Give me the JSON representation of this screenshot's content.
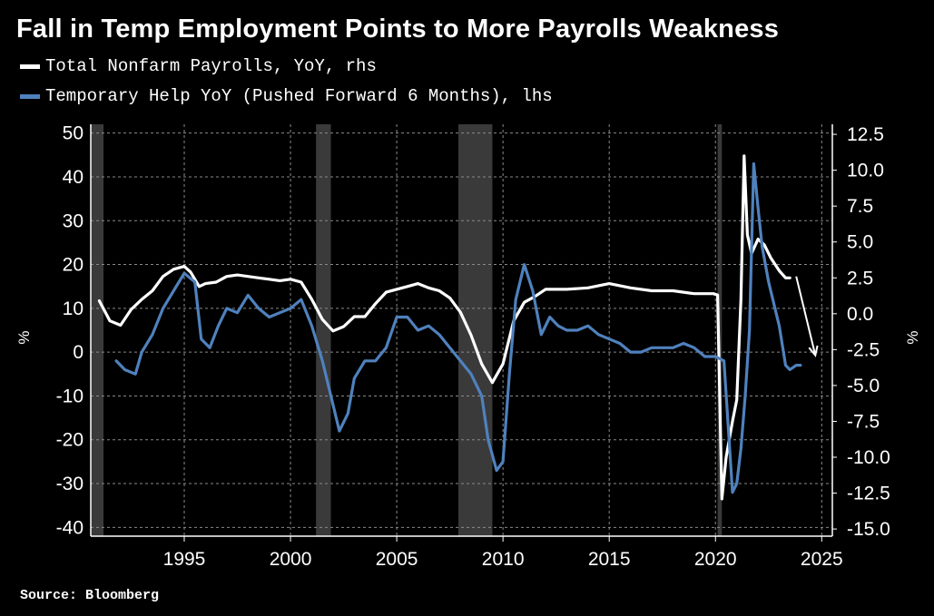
{
  "header": {
    "title": "Fall in Temp Employment Points to More Payrolls Weakness"
  },
  "legend": {
    "series1": "Total Nonfarm Payrolls, YoY, rhs",
    "series2": "Temporary Help YoY (Pushed Forward 6 Months), lhs"
  },
  "footer": {
    "source": "Source: Bloomberg"
  },
  "chart_data": {
    "type": "line",
    "title": "Fall in Temp Employment Points to More Payrolls Weakness",
    "x_ticks": [
      "1995",
      "2000",
      "2005",
      "2010",
      "2015",
      "2020",
      "2025"
    ],
    "x_tick_values": [
      1995,
      2000,
      2005,
      2010,
      2015,
      2020,
      2025
    ],
    "xlim": [
      1990.6,
      2025.5
    ],
    "left_axis": {
      "label": "%",
      "ylim": [
        -42,
        52
      ],
      "ticks": [
        50,
        40,
        30,
        20,
        10,
        0,
        -10,
        -20,
        -30,
        -40
      ]
    },
    "right_axis": {
      "label": "%",
      "ylim": [
        -15.5,
        13.2
      ],
      "ticks": [
        "12.5",
        "10.0",
        "7.5",
        "5.0",
        "2.5",
        "0.0",
        "-2.5",
        "-5.0",
        "-7.5",
        "-10.0",
        "-12.5",
        "-15.0"
      ]
    },
    "grid": true,
    "recessions": [
      [
        1990.6,
        1991.2
      ],
      [
        2001.2,
        2001.9
      ],
      [
        2007.9,
        2009.5
      ],
      [
        2020.1,
        2020.3
      ]
    ],
    "series": [
      {
        "name": "Total Nonfarm Payrolls, YoY, rhs",
        "axis": "right",
        "color": "#ffffff",
        "x": [
          1991.0,
          1991.5,
          1992.0,
          1992.5,
          1993.0,
          1993.5,
          1994.0,
          1994.5,
          1995.0,
          1995.3,
          1995.7,
          1996.0,
          1996.5,
          1997.0,
          1997.5,
          1998.0,
          1998.5,
          1999.0,
          1999.5,
          2000.0,
          2000.5,
          2001.0,
          2001.5,
          2002.0,
          2002.5,
          2003.0,
          2003.5,
          2004.0,
          2004.5,
          2005.0,
          2005.5,
          2006.0,
          2006.5,
          2007.0,
          2007.5,
          2008.0,
          2008.5,
          2009.0,
          2009.5,
          2010.0,
          2010.5,
          2011.0,
          2011.5,
          2012.0,
          2013.0,
          2014.0,
          2015.0,
          2016.0,
          2017.0,
          2018.0,
          2019.0,
          2019.9,
          2020.1,
          2020.3,
          2020.5,
          2020.8,
          2021.0,
          2021.2,
          2021.35,
          2021.5,
          2021.7,
          2022.0,
          2022.3,
          2022.6,
          2023.0,
          2023.3,
          2023.5
        ],
        "values": [
          0.9,
          -0.5,
          -0.8,
          0.3,
          1.0,
          1.6,
          2.6,
          3.1,
          3.3,
          2.9,
          1.9,
          2.1,
          2.2,
          2.6,
          2.7,
          2.6,
          2.5,
          2.4,
          2.3,
          2.4,
          2.2,
          1.0,
          -0.4,
          -1.2,
          -0.9,
          -0.2,
          -0.2,
          0.7,
          1.5,
          1.7,
          1.9,
          2.1,
          1.8,
          1.6,
          1.1,
          0.1,
          -1.5,
          -3.5,
          -4.8,
          -3.5,
          -0.5,
          0.8,
          1.2,
          1.7,
          1.7,
          1.8,
          2.1,
          1.8,
          1.6,
          1.6,
          1.4,
          1.4,
          1.3,
          -12.9,
          -10.0,
          -7.5,
          -6.0,
          1.0,
          11.0,
          5.5,
          4.2,
          5.2,
          4.8,
          3.9,
          3.0,
          2.5,
          2.5
        ]
      },
      {
        "name": "Temporary Help YoY (Pushed Forward 6 Months), lhs",
        "axis": "left",
        "color": "#4f81bd",
        "x": [
          1991.8,
          1992.2,
          1992.7,
          1993.0,
          1993.5,
          1994.0,
          1994.5,
          1995.0,
          1995.5,
          1995.8,
          1996.2,
          1996.6,
          1997.0,
          1997.5,
          1998.0,
          1998.5,
          1999.0,
          1999.5,
          2000.0,
          2000.5,
          2001.0,
          2001.5,
          2002.0,
          2002.3,
          2002.7,
          2003.0,
          2003.5,
          2004.0,
          2004.5,
          2005.0,
          2005.5,
          2006.0,
          2006.5,
          2007.0,
          2007.5,
          2008.0,
          2008.5,
          2009.0,
          2009.3,
          2009.7,
          2010.0,
          2010.3,
          2010.6,
          2011.0,
          2011.4,
          2011.8,
          2012.2,
          2012.6,
          2013.0,
          2013.5,
          2014.0,
          2014.5,
          2015.0,
          2015.5,
          2016.0,
          2016.5,
          2017.0,
          2017.5,
          2018.0,
          2018.5,
          2019.0,
          2019.5,
          2020.0,
          2020.4,
          2020.8,
          2021.0,
          2021.2,
          2021.4,
          2021.6,
          2021.8,
          2022.0,
          2022.2,
          2022.5,
          2022.8,
          2023.0,
          2023.3,
          2023.5,
          2023.8,
          2024.0
        ],
        "values": [
          -2,
          -4,
          -5,
          0,
          4,
          10,
          14,
          18,
          16,
          3,
          1,
          6,
          10,
          9,
          13,
          10,
          8,
          9,
          10,
          12,
          6,
          -2,
          -12,
          -18,
          -14,
          -6,
          -2,
          -2,
          1,
          8,
          8,
          5,
          6,
          4,
          1,
          -2,
          -5,
          -10,
          -20,
          -27,
          -25,
          -5,
          12,
          20,
          14,
          4,
          8,
          6,
          5,
          5,
          6,
          4,
          3,
          2,
          0,
          0,
          1,
          1,
          1,
          2,
          1,
          -1,
          -1,
          -2,
          -32,
          -30,
          -22,
          -10,
          5,
          43,
          33,
          24,
          16,
          10,
          6,
          -3,
          -4,
          -3,
          -3
        ]
      }
    ],
    "annotations": [
      {
        "type": "arrow",
        "color": "#ffffff",
        "from": [
          2023.8,
          2.6
        ],
        "to": [
          2024.7,
          -2.9
        ],
        "axis": "right"
      }
    ]
  }
}
